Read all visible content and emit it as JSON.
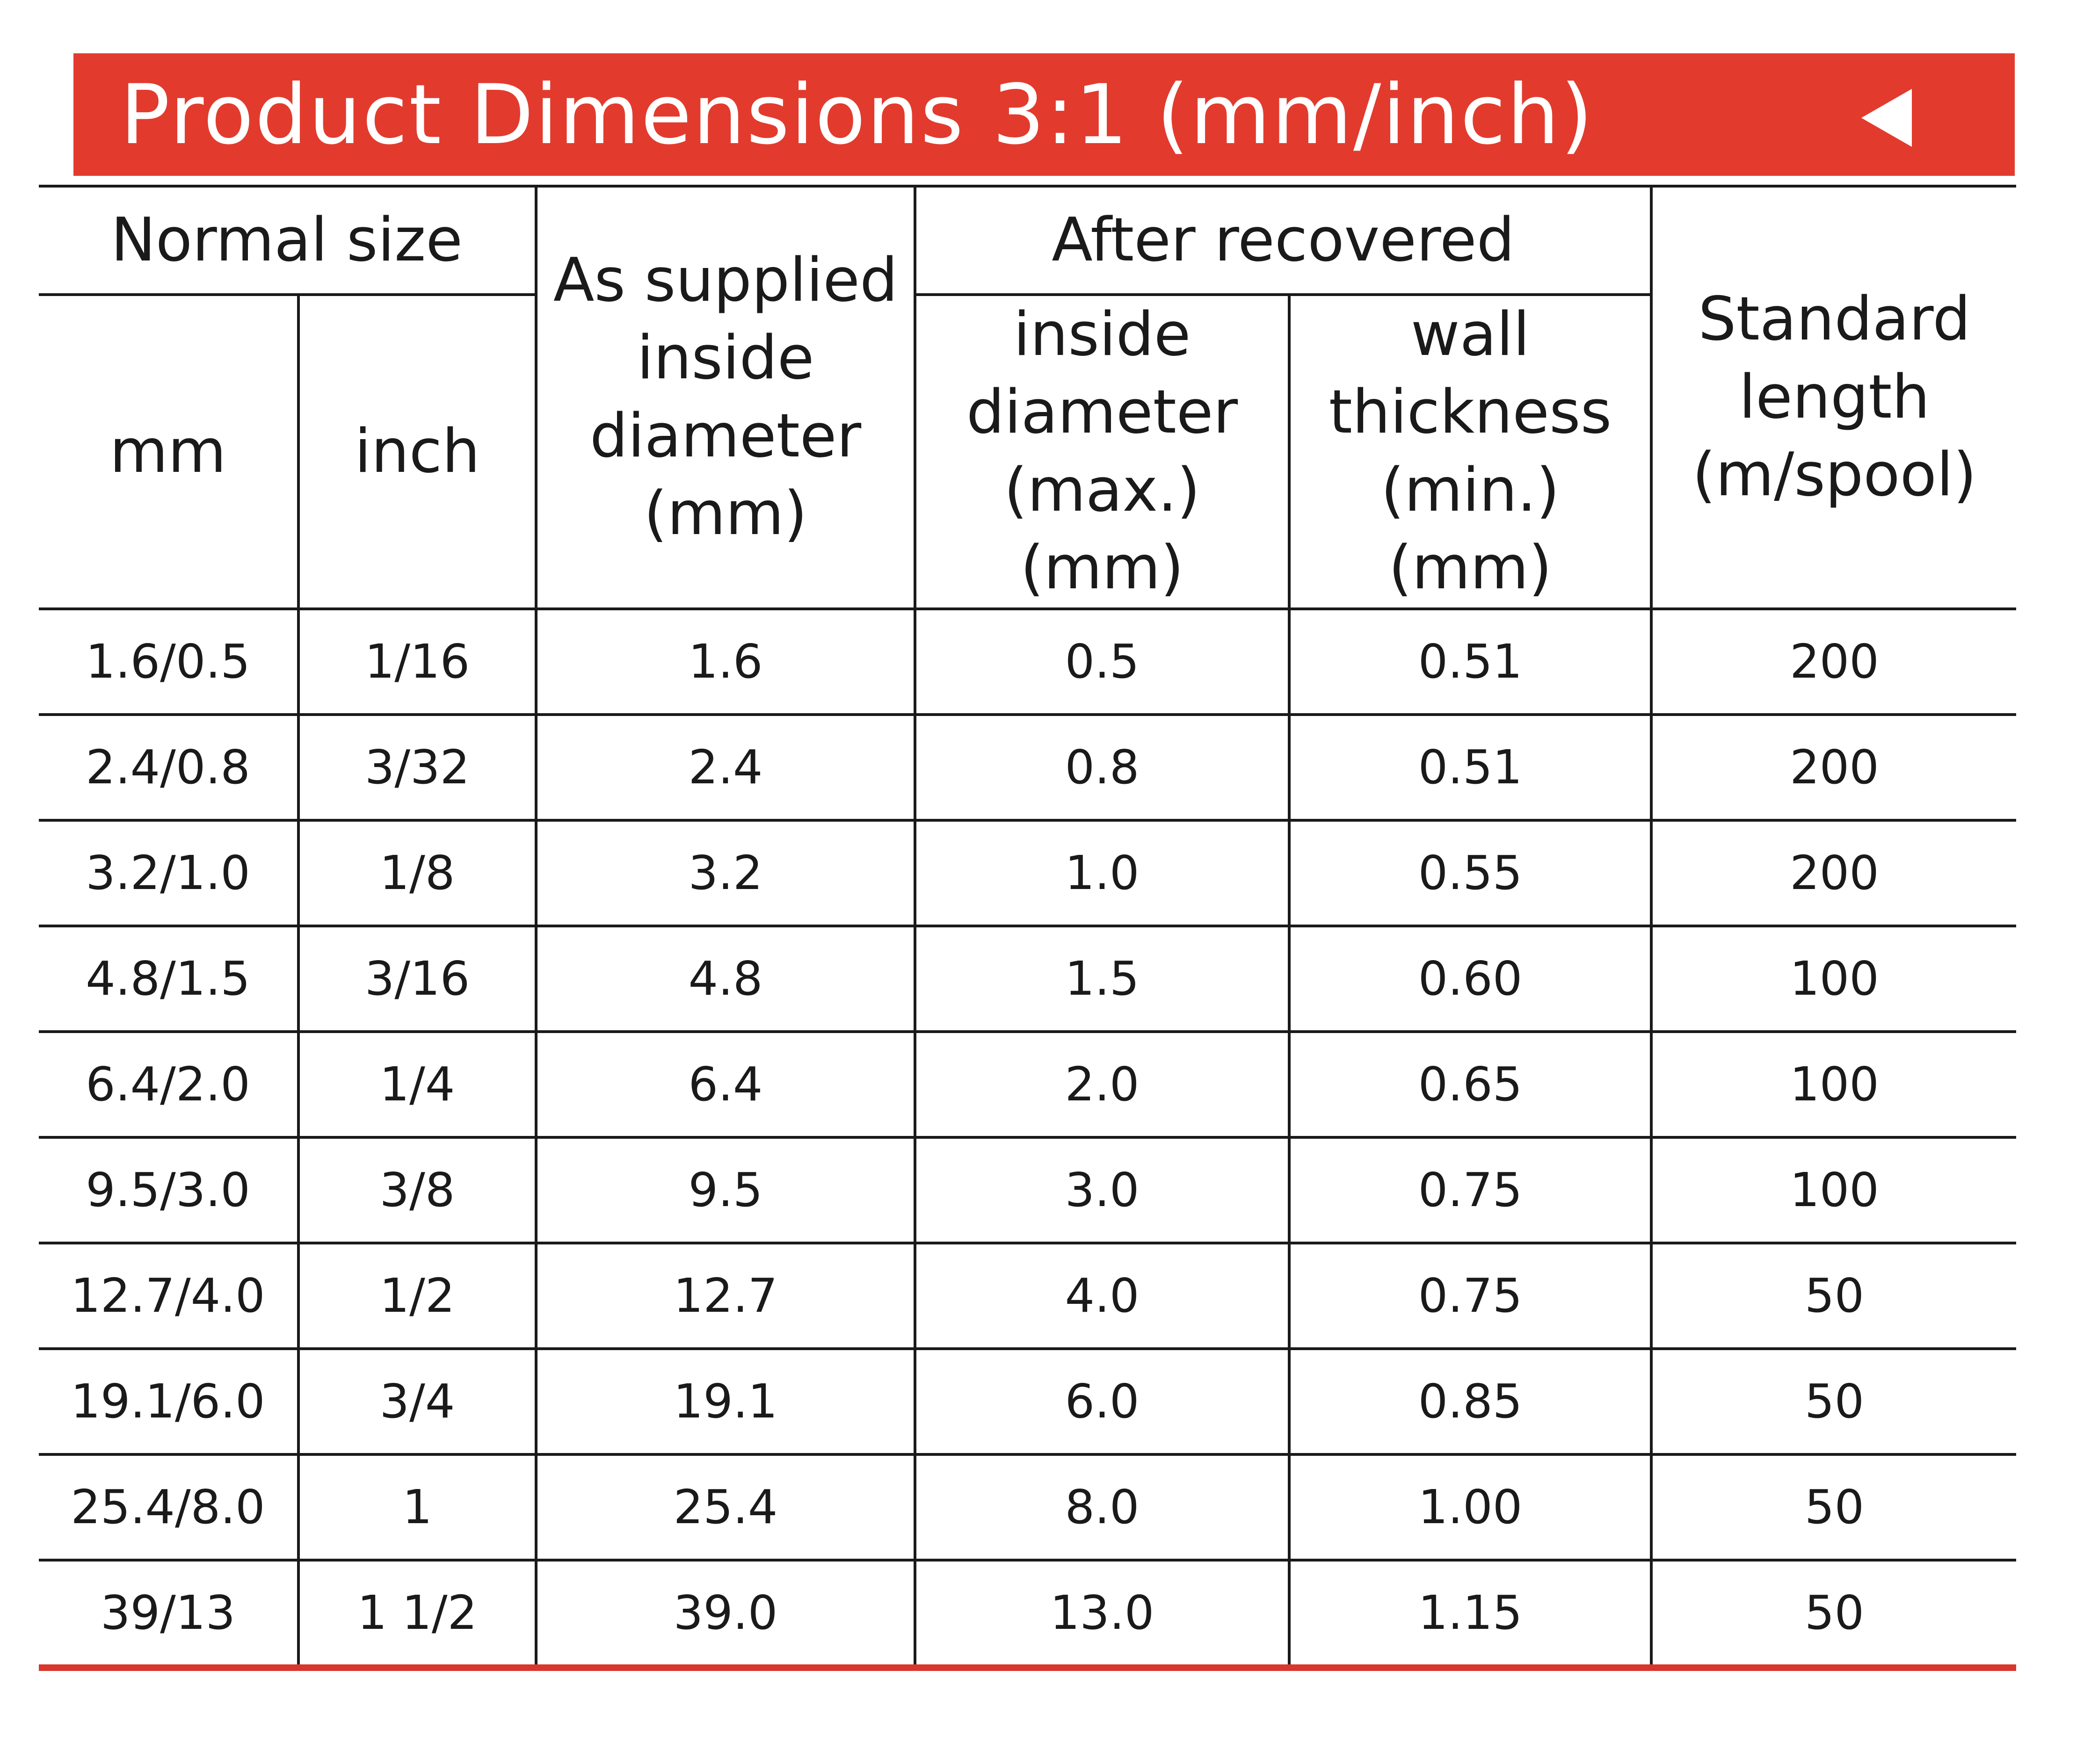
{
  "banner": {
    "title": "Product Dimensions 3:1 (mm/inch)",
    "arrow_icon": "left-triangle-icon",
    "color": "#e23b2e"
  },
  "table": {
    "headers": {
      "normal_size": "Normal size",
      "mm": "mm",
      "inch": "inch",
      "as_supplied": [
        "As supplied",
        "inside",
        "diameter",
        "(mm)"
      ],
      "after_recovered": "After recovered",
      "inside_diameter": [
        "inside",
        "diameter",
        "(max.) (mm)"
      ],
      "wall_thickness": [
        "wall",
        "thickness",
        "(min.) (mm)"
      ],
      "standard_length": [
        "Standard",
        "length",
        "(m/spool)"
      ]
    },
    "rows": [
      [
        "1.6/0.5",
        "1/16",
        "1.6",
        "0.5",
        "0.51",
        "200"
      ],
      [
        "2.4/0.8",
        "3/32",
        "2.4",
        "0.8",
        "0.51",
        "200"
      ],
      [
        "3.2/1.0",
        "1/8",
        "3.2",
        "1.0",
        "0.55",
        "200"
      ],
      [
        "4.8/1.5",
        "3/16",
        "4.8",
        "1.5",
        "0.60",
        "100"
      ],
      [
        "6.4/2.0",
        "1/4",
        "6.4",
        "2.0",
        "0.65",
        "100"
      ],
      [
        "9.5/3.0",
        "3/8",
        "9.5",
        "3.0",
        "0.75",
        "100"
      ],
      [
        "12.7/4.0",
        "1/2",
        "12.7",
        "4.0",
        "0.75",
        "50"
      ],
      [
        "19.1/6.0",
        "3/4",
        "19.1",
        "6.0",
        "0.85",
        "50"
      ],
      [
        "25.4/8.0",
        "1",
        "25.4",
        "8.0",
        "1.00",
        "50"
      ],
      [
        "39/13",
        "1 1/2",
        "39.0",
        "13.0",
        "1.15",
        "50"
      ]
    ]
  }
}
